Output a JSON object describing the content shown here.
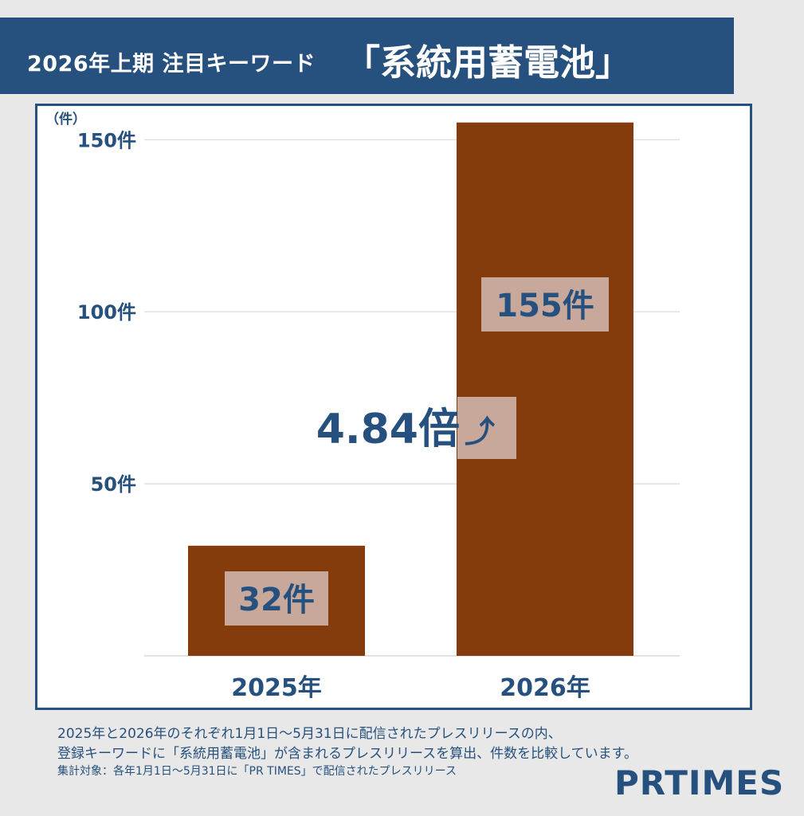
{
  "title": {
    "prefix": "2026年上期 注目キーワード",
    "keyword": "「系統用蓄電池」"
  },
  "chart_data": {
    "type": "bar",
    "categories": [
      "2025年",
      "2026年"
    ],
    "values": [
      32,
      155
    ],
    "value_labels": [
      "32件",
      "155件"
    ],
    "ylim": [
      0,
      155
    ],
    "yticks": [
      50,
      100,
      150
    ],
    "ytick_labels": [
      "50件",
      "100件",
      "150件"
    ],
    "yunit": "（件）",
    "annotation": "4.84倍",
    "annotation_arrow": "⤴",
    "grid": true,
    "colors": {
      "bar": "#843c0c",
      "label_box": "#c7a89a",
      "text": "#26507e",
      "grid": "#d9d9d9"
    }
  },
  "footnotes": {
    "line1": "2025年と2026年のそれぞれ1月1日～5月31日に配信されたプレスリリースの内、",
    "line2": "登録キーワードに「系統用蓄電池」が含まれるプレスリリースを算出、件数を比較しています。",
    "line3": "集計対象：各年1月1日～5月31日に「PR TIMES」で配信されたプレスリリース"
  },
  "logo": "PRTIMES",
  "colors": {
    "banner": "#26507e",
    "background": "#e8e8e8"
  }
}
